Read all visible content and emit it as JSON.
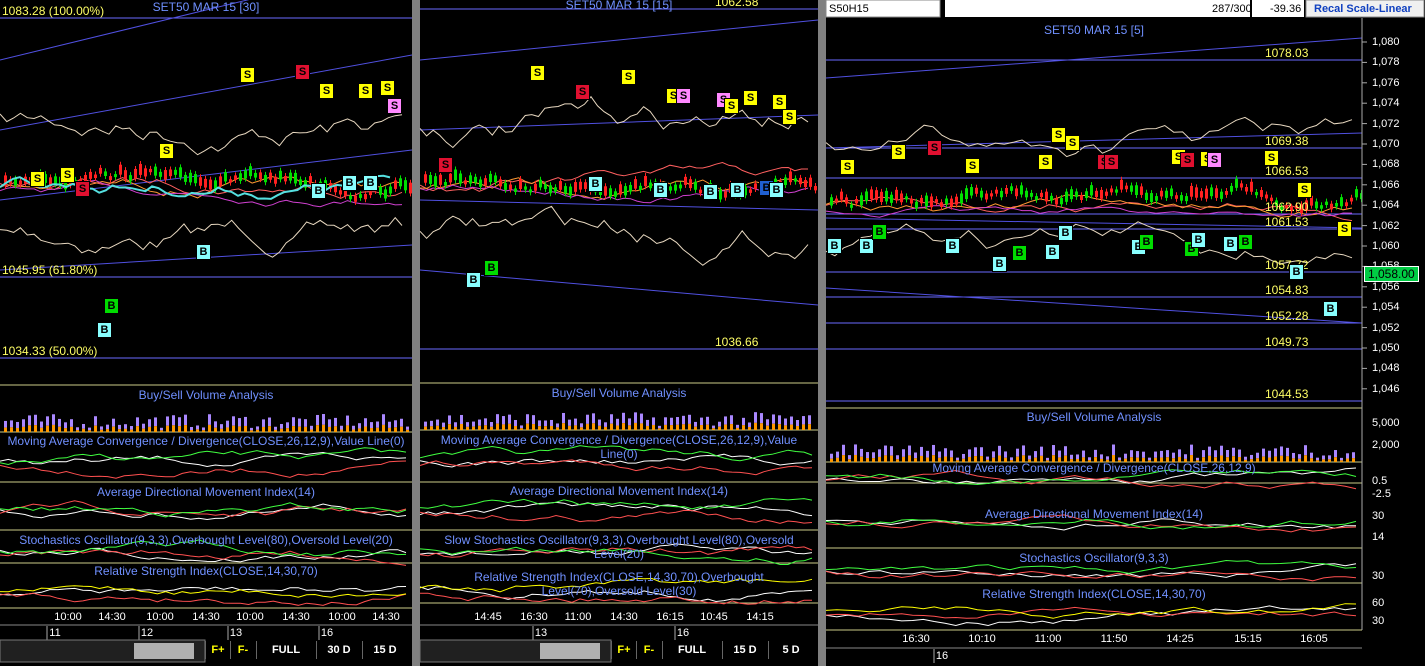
{
  "toolbar": {
    "symbol": "S50H15",
    "count": "287/300",
    "change": "-39.36",
    "button": "Recal Scale-Linear"
  },
  "panels": [
    {
      "title": "SET50 MAR 15  [30]",
      "levels": [
        "1083.28 (100.00%)",
        "1045.95 (61.80%)",
        "1034.33 (50.00%)"
      ],
      "markers": [
        "S",
        "S",
        "S",
        "S",
        "S",
        "S",
        "S",
        "S",
        "S",
        "S",
        "B",
        "B",
        "B",
        "B",
        "B",
        "B"
      ],
      "studies": [
        "Buy/Sell Volume Analysis",
        "Moving Average Convergence / Divergence(CLOSE,26,12,9),Value Line(0)",
        "Average Directional Movement Index(14)",
        "Stochastics Oscillator(9,3,3),Overbought Level(80),Oversold Level(20)",
        "Relative Strength Index(CLOSE,14,30,70)"
      ],
      "times": [
        "10:00",
        "14:30",
        "10:00",
        "14:30",
        "10:00",
        "14:30",
        "10:00",
        "14:30"
      ],
      "days": [
        "11",
        "12",
        "13",
        "16"
      ],
      "buttons": [
        "F+",
        "F-",
        "FULL",
        "30 D",
        "15 D"
      ]
    },
    {
      "title": "SET50 MAR 15   [15]",
      "levels": [
        "1062.58",
        "1036.66"
      ],
      "markers": [
        "S",
        "S",
        "S",
        "S",
        "S",
        "S",
        "S",
        "S",
        "S",
        "S",
        "S",
        "B",
        "B",
        "B",
        "B",
        "B",
        "B",
        "B",
        "B"
      ],
      "studies": [
        "Buy/Sell Volume Analysis",
        "Moving Average Convergence / Divergence(CLOSE,26,12,9),Value Line(0)",
        "Average Directional Movement Index(14)",
        "Slow Stochastics Oscillator(9,3,3),Overbought Level(80),Oversold Level(20)",
        "Relative Strength Index(CLOSE,14,30,70),Overbought Level(70),Oversold Level(30)"
      ],
      "times": [
        "14:45",
        "16:30",
        "11:00",
        "14:30",
        "16:15",
        "10:45",
        "14:15"
      ],
      "days": [
        "13",
        "16"
      ],
      "buttons": [
        "F+",
        "F-",
        "FULL",
        "15 D",
        "5 D"
      ]
    },
    {
      "title": "SET50 MAR 15   [5]",
      "levels": [
        "1078.03",
        "1069.38",
        "1066.53",
        "1062.90",
        "1061.53",
        "1057.72",
        "1054.83",
        "1052.28",
        "1049.73",
        "1044.53"
      ],
      "price_axis": [
        "1,080",
        "1,078",
        "1,076",
        "1,074",
        "1,072",
        "1,070",
        "1,068",
        "1,066",
        "1,064",
        "1,062",
        "1,060",
        "1,058",
        "1,056",
        "1,054",
        "1,052",
        "1,050",
        "1,048",
        "1,046"
      ],
      "current_price": "1,058.00",
      "study_axes": [
        "5,000",
        "2,000",
        "0.5",
        "-2.5",
        "30",
        "14",
        "30",
        "60",
        "30"
      ],
      "markers": [
        "S",
        "S",
        "S",
        "S",
        "S",
        "S",
        "S",
        "S",
        "S",
        "S",
        "S",
        "S",
        "S",
        "S",
        "S",
        "S",
        "B",
        "B",
        "B",
        "B",
        "B",
        "B",
        "B",
        "B",
        "B",
        "B",
        "B",
        "B",
        "B",
        "B",
        "B",
        "B"
      ],
      "studies": [
        "Buy/Sell Volume Analysis",
        "Moving Average Convergence / Divergence(CLOSE,26,12,9)",
        "Average Directional Movement Index(14)",
        "Stochastics Oscillator(9,3,3)",
        "Relative Strength Index(CLOSE,14,30,70)"
      ],
      "times": [
        "16:30",
        "10:10",
        "11:00",
        "11:50",
        "14:25",
        "15:15",
        "16:05"
      ],
      "days": [
        "16"
      ]
    }
  ]
}
